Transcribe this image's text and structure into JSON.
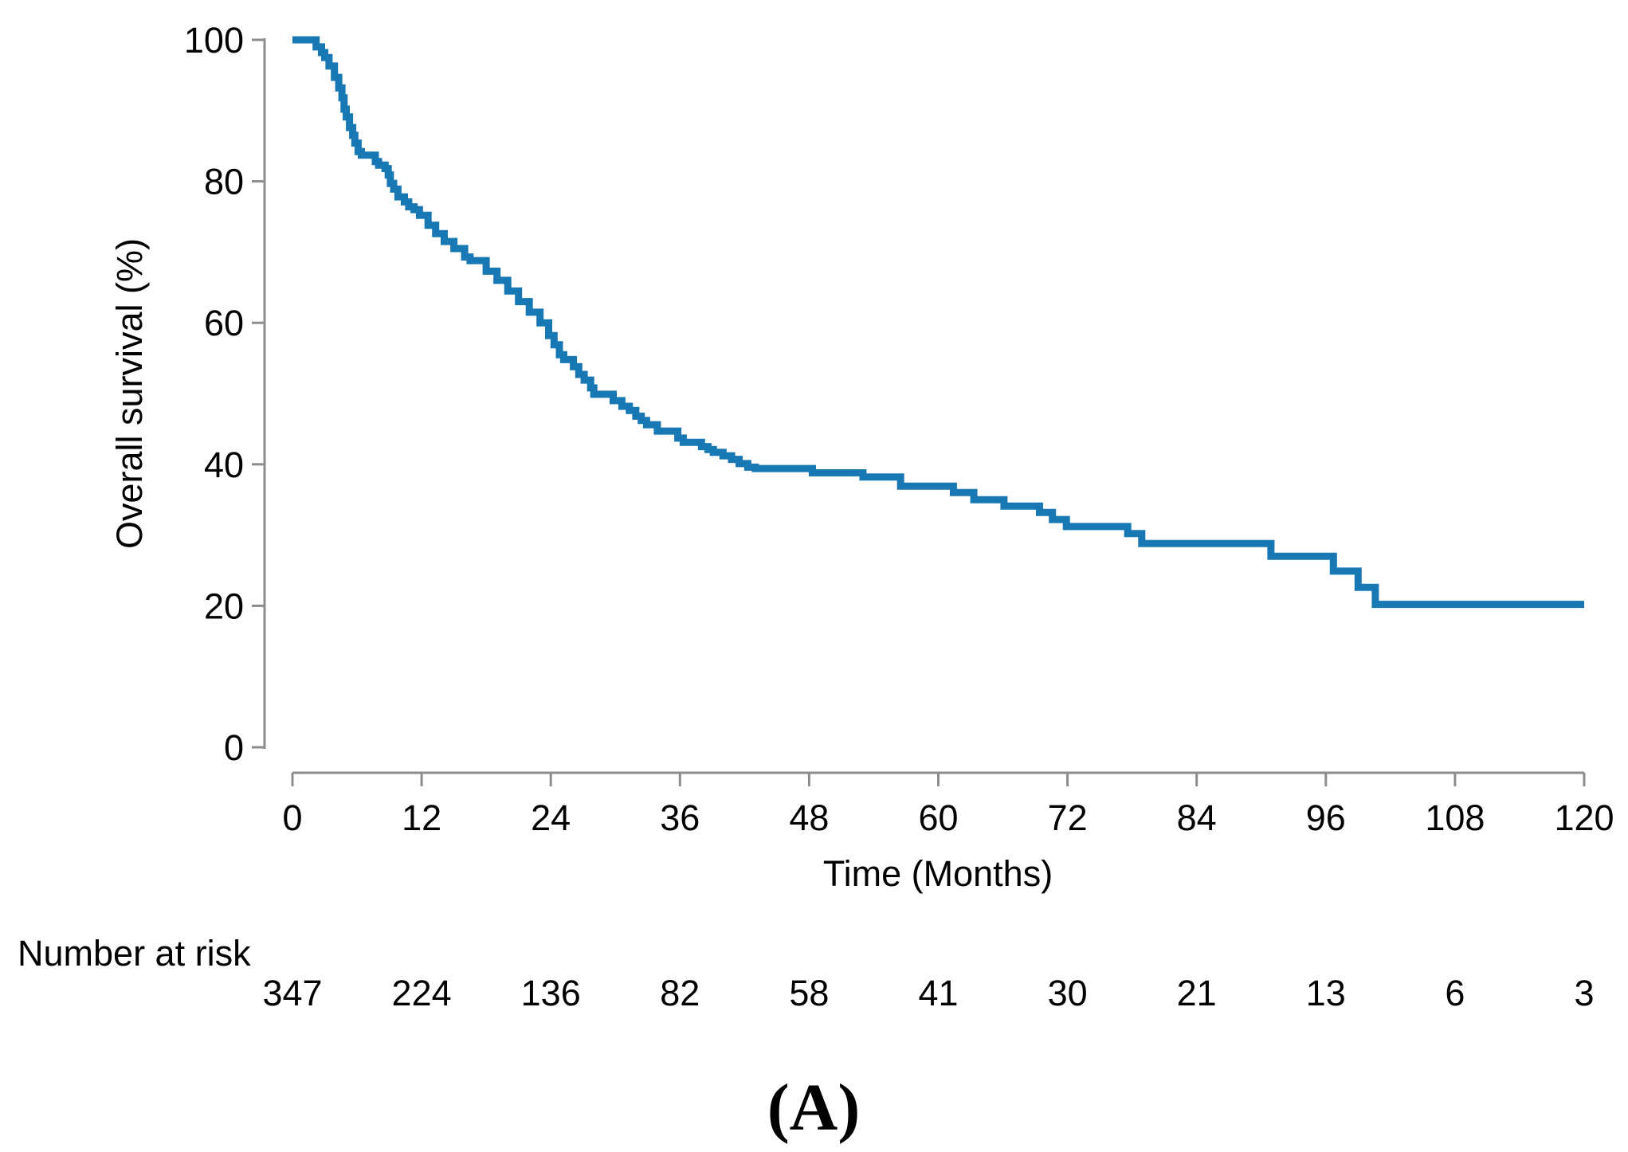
{
  "figure": {
    "panel_label": "(A)"
  },
  "colors": {
    "curve": "#1778b4",
    "axis": "#8c8c8c",
    "text": "#000000",
    "background": "#ffffff"
  },
  "chart_data": {
    "type": "line",
    "subtype": "kaplan-meier-step-curve",
    "title": "",
    "xlabel": "Time (Months)",
    "ylabel": "Overall survival (%)",
    "xlim": [
      0,
      120
    ],
    "ylim": [
      0,
      100
    ],
    "x_ticks": [
      0,
      12,
      24,
      36,
      48,
      60,
      72,
      84,
      96,
      108,
      120
    ],
    "y_ticks": [
      0,
      20,
      40,
      60,
      80,
      100
    ],
    "grid": false,
    "legend_position": "none",
    "series": [
      {
        "name": "Overall survival",
        "color": "#1778b4",
        "steps": [
          [
            0,
            100
          ],
          [
            1.8,
            100
          ],
          [
            2.2,
            99
          ],
          [
            2.7,
            98.2
          ],
          [
            3.0,
            97.5
          ],
          [
            3.4,
            96.3
          ],
          [
            3.9,
            94.7
          ],
          [
            4.3,
            93.2
          ],
          [
            4.6,
            91.8
          ],
          [
            4.8,
            90.2
          ],
          [
            5.0,
            89.1
          ],
          [
            5.3,
            87.6
          ],
          [
            5.6,
            86.5
          ],
          [
            5.8,
            85.4
          ],
          [
            6.1,
            84.2
          ],
          [
            6.4,
            83.7
          ],
          [
            7.7,
            82.8
          ],
          [
            8.0,
            82.3
          ],
          [
            8.6,
            81.8
          ],
          [
            8.9,
            80.9
          ],
          [
            9.1,
            79.7
          ],
          [
            9.4,
            78.9
          ],
          [
            9.8,
            77.8
          ],
          [
            10.4,
            77.1
          ],
          [
            10.8,
            76.4
          ],
          [
            11.3,
            76.0
          ],
          [
            11.8,
            75.2
          ],
          [
            12.6,
            73.8
          ],
          [
            13.3,
            72.6
          ],
          [
            14.1,
            71.5
          ],
          [
            15.0,
            70.5
          ],
          [
            16.0,
            69.3
          ],
          [
            16.5,
            68.8
          ],
          [
            18.0,
            67.3
          ],
          [
            19.0,
            66.0
          ],
          [
            20.0,
            64.5
          ],
          [
            21.0,
            63.0
          ],
          [
            22.0,
            61.5
          ],
          [
            23.0,
            60.0
          ],
          [
            23.8,
            58.2
          ],
          [
            24.3,
            56.9
          ],
          [
            24.8,
            55.5
          ],
          [
            25.2,
            54.8
          ],
          [
            26.1,
            53.8
          ],
          [
            26.6,
            52.7
          ],
          [
            27.1,
            51.9
          ],
          [
            27.7,
            50.8
          ],
          [
            28.0,
            49.9
          ],
          [
            29.8,
            49.0
          ],
          [
            30.6,
            48.2
          ],
          [
            31.3,
            47.6
          ],
          [
            31.9,
            46.8
          ],
          [
            32.4,
            46.2
          ],
          [
            32.9,
            45.6
          ],
          [
            33.9,
            44.7
          ],
          [
            35.8,
            43.7
          ],
          [
            36.3,
            43.1
          ],
          [
            38.0,
            42.5
          ],
          [
            38.6,
            42.1
          ],
          [
            39.1,
            41.7
          ],
          [
            40.0,
            41.2
          ],
          [
            40.8,
            40.7
          ],
          [
            41.5,
            40.1
          ],
          [
            42.3,
            39.6
          ],
          [
            43.0,
            39.4
          ],
          [
            48.3,
            38.8
          ],
          [
            53.0,
            38.2
          ],
          [
            56.5,
            36.9
          ],
          [
            61.4,
            36.0
          ],
          [
            63.3,
            35.0
          ],
          [
            66.1,
            34.1
          ],
          [
            69.4,
            33.2
          ],
          [
            70.6,
            32.2
          ],
          [
            71.9,
            31.2
          ],
          [
            77.6,
            30.2
          ],
          [
            78.9,
            28.8
          ],
          [
            90.9,
            27.0
          ],
          [
            96.7,
            24.9
          ],
          [
            99.0,
            22.6
          ],
          [
            100.6,
            20.2
          ],
          [
            120,
            20.2
          ]
        ]
      }
    ],
    "number_at_risk": {
      "label": "Number at risk",
      "times": [
        0,
        12,
        24,
        36,
        48,
        60,
        72,
        84,
        96,
        108,
        120
      ],
      "counts": [
        "347",
        "224",
        "136",
        "82",
        "58",
        "41",
        "30",
        "21",
        "13",
        "6",
        "3"
      ]
    }
  }
}
